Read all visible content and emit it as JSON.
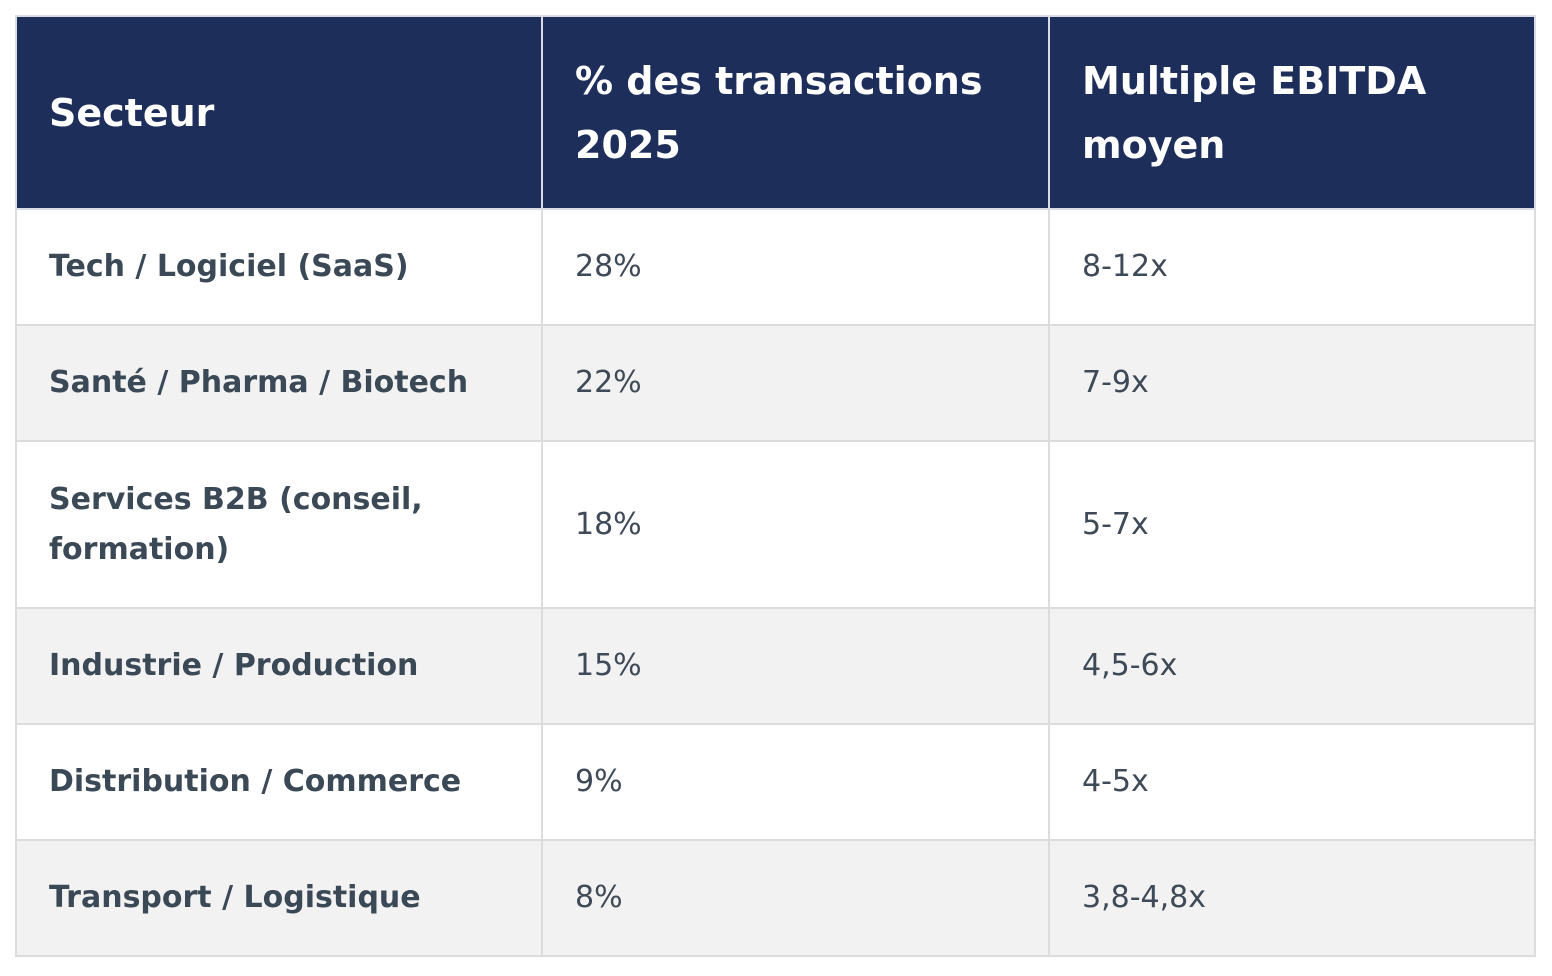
{
  "table": {
    "headers": [
      "Secteur",
      "% des transactions 2025",
      "Multiple EBITDA moyen"
    ],
    "rows": [
      {
        "sector": "Tech / Logiciel (SaaS)",
        "share": "28%",
        "multiple": "8-12x"
      },
      {
        "sector": "Santé / Pharma / Biotech",
        "share": "22%",
        "multiple": "7-9x"
      },
      {
        "sector": "Services B2B (conseil, formation)",
        "share": "18%",
        "multiple": "5-7x"
      },
      {
        "sector": "Industrie / Production",
        "share": "15%",
        "multiple": "4,5-6x"
      },
      {
        "sector": "Distribution / Commerce",
        "share": "9%",
        "multiple": "4-5x"
      },
      {
        "sector": "Transport / Logistique",
        "share": "8%",
        "multiple": "3,8-4,8x"
      }
    ]
  },
  "colors": {
    "header_bg": "#1e2e5a",
    "header_text": "#ffffff",
    "row_alt_bg": "#f2f2f2",
    "body_text": "#3e4a57",
    "border": "#dcdcdc"
  }
}
